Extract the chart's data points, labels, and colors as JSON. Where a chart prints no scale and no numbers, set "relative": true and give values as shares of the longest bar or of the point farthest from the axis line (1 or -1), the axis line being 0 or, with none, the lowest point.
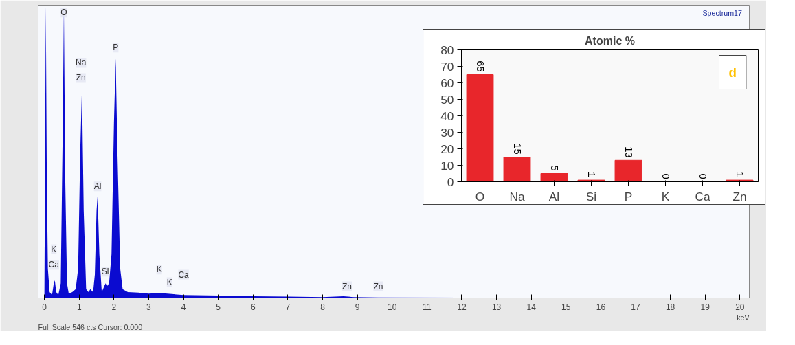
{
  "chart_data": [
    {
      "type": "area",
      "color": "#0b0bd0",
      "relative": true,
      "xlabel": "keV",
      "tick_labels": "x",
      "grid": false,
      "x": [
        0,
        0.02,
        0.04,
        0.07,
        0.1,
        0.15,
        0.22,
        0.27,
        0.3,
        0.34,
        0.4,
        0.47,
        0.53,
        0.56,
        0.6,
        0.65,
        0.7,
        0.8,
        0.9,
        0.97,
        1.03,
        1.08,
        1.13,
        1.2,
        1.27,
        1.32,
        1.4,
        1.45,
        1.5,
        1.53,
        1.58,
        1.65,
        1.72,
        1.76,
        1.8,
        1.86,
        1.93,
        2.0,
        2.05,
        2.1,
        2.18,
        2.25,
        2.4,
        2.7,
        3.0,
        3.3,
        3.6,
        4.0,
        5.0,
        6.0,
        7.0,
        8.0,
        8.6,
        8.9,
        9.6,
        12,
        16,
        20
      ],
      "values": [
        0,
        0.5,
        1.0,
        0.4,
        0.1,
        0.02,
        0.01,
        0.05,
        0.06,
        0.02,
        0.01,
        0.05,
        0.6,
        1.0,
        0.4,
        0.05,
        0.015,
        0.02,
        0.03,
        0.1,
        0.5,
        0.72,
        0.3,
        0.03,
        0.02,
        0.03,
        0.02,
        0.08,
        0.3,
        0.35,
        0.15,
        0.02,
        0.04,
        0.05,
        0.04,
        0.05,
        0.15,
        0.6,
        0.82,
        0.5,
        0.1,
        0.03,
        0.02,
        0.018,
        0.015,
        0.017,
        0.014,
        0.01,
        0.008,
        0.006,
        0.005,
        0.003,
        0.006,
        0.003,
        0.002,
        0.001,
        0.0005,
        0
      ],
      "xlim": [
        -0.18,
        20.27
      ],
      "xticks": [
        0,
        1,
        2,
        3,
        4,
        5,
        6,
        7,
        8,
        9,
        10,
        11,
        12,
        13,
        14,
        15,
        16,
        17,
        18,
        19,
        20
      ],
      "annotations": [
        {
          "text": "O",
          "x": 0.56,
          "y": 0.977
        },
        {
          "text": "Na",
          "x": 1.05,
          "y": 0.805
        },
        {
          "text": "Zn",
          "x": 1.05,
          "y": 0.753
        },
        {
          "text": "P",
          "x": 2.05,
          "y": 0.857
        },
        {
          "text": "Al",
          "x": 1.53,
          "y": 0.382
        },
        {
          "text": "K",
          "x": 0.27,
          "y": 0.167
        },
        {
          "text": "Ca",
          "x": 0.27,
          "y": 0.113
        },
        {
          "text": "Si",
          "x": 1.75,
          "y": 0.09
        },
        {
          "text": "K",
          "x": 3.3,
          "y": 0.097
        },
        {
          "text": "K",
          "x": 3.6,
          "y": 0.054
        },
        {
          "text": "Ca",
          "x": 4.0,
          "y": 0.08
        },
        {
          "text": "Zn",
          "x": 8.7,
          "y": 0.04
        },
        {
          "text": "Zn",
          "x": 9.6,
          "y": 0.04
        },
        "Spectrum17",
        "Full Scale 546 cts Cursor: 0.000"
      ]
    },
    {
      "type": "bar",
      "title": "Atomic %",
      "categories": [
        "O",
        "Na",
        "Al",
        "Si",
        "P",
        "K",
        "Ca",
        "Zn"
      ],
      "values": [
        65,
        15,
        5,
        1,
        13,
        0,
        0,
        1
      ],
      "color": "#e8262b",
      "ylim": [
        0,
        80
      ],
      "yticks": [
        0,
        10,
        20,
        30,
        40,
        50,
        60,
        70,
        80
      ],
      "data_labels": true,
      "grid": false,
      "annotations": [
        "d"
      ]
    }
  ]
}
